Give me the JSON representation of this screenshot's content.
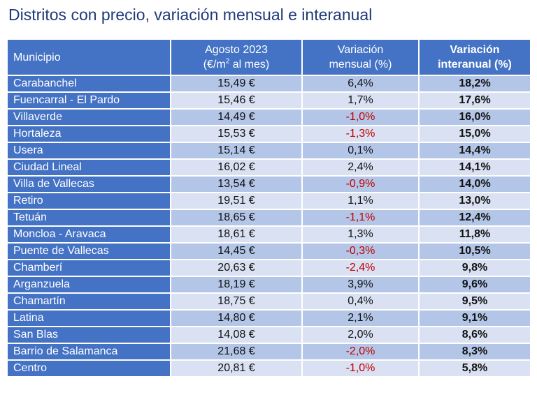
{
  "title": "Distritos con precio, variación mensual e interanual",
  "header": {
    "municipio": "Municipio",
    "agosto_line1": "Agosto 2023",
    "agosto_line2_pre": "(€/m",
    "agosto_line2_sup": "2",
    "agosto_line2_post": " al mes)",
    "mensual_line1": "Variación",
    "mensual_line2": "mensual (%)",
    "interanual_line1": "Variación",
    "interanual_line2": "interanual (%)"
  },
  "colors": {
    "title": "#1f3a7a",
    "header_bg": "#4472c4",
    "row_light": "#d9e1f2",
    "row_dark": "#b4c6e7",
    "negative": "#c00000"
  },
  "rows": [
    {
      "municipio": "Carabanchel",
      "precio": "15,49 €",
      "mensual": "6,4%",
      "interanual": "18,2%"
    },
    {
      "municipio": "Fuencarral - El Pardo",
      "precio": "15,46 €",
      "mensual": "1,7%",
      "interanual": "17,6%"
    },
    {
      "municipio": "Villaverde",
      "precio": "14,49 €",
      "mensual": "-1,0%",
      "interanual": "16,0%"
    },
    {
      "municipio": "Hortaleza",
      "precio": "15,53 €",
      "mensual": "-1,3%",
      "interanual": "15,0%"
    },
    {
      "municipio": "Usera",
      "precio": "15,14 €",
      "mensual": "0,1%",
      "interanual": "14,4%"
    },
    {
      "municipio": "Ciudad Lineal",
      "precio": "16,02 €",
      "mensual": "2,4%",
      "interanual": "14,1%"
    },
    {
      "municipio": "Villa de Vallecas",
      "precio": "13,54 €",
      "mensual": "-0,9%",
      "interanual": "14,0%"
    },
    {
      "municipio": "Retiro",
      "precio": "19,51 €",
      "mensual": "1,1%",
      "interanual": "13,0%"
    },
    {
      "municipio": "Tetuán",
      "precio": "18,65 €",
      "mensual": "-1,1%",
      "interanual": "12,4%"
    },
    {
      "municipio": "Moncloa - Aravaca",
      "precio": "18,61 €",
      "mensual": "1,3%",
      "interanual": "11,8%"
    },
    {
      "municipio": "Puente de Vallecas",
      "precio": "14,45 €",
      "mensual": "-0,3%",
      "interanual": "10,5%"
    },
    {
      "municipio": "Chamberí",
      "precio": "20,63 €",
      "mensual": "-2,4%",
      "interanual": "9,8%"
    },
    {
      "municipio": "Arganzuela",
      "precio": "18,19 €",
      "mensual": "3,9%",
      "interanual": "9,6%"
    },
    {
      "municipio": "Chamartín",
      "precio": "18,75 €",
      "mensual": "0,4%",
      "interanual": "9,5%"
    },
    {
      "municipio": "Latina",
      "precio": "14,80 €",
      "mensual": "2,1%",
      "interanual": "9,1%"
    },
    {
      "municipio": "San Blas",
      "precio": "14,08 €",
      "mensual": "2,0%",
      "interanual": "8,6%"
    },
    {
      "municipio": "Barrio de Salamanca",
      "precio": "21,68 €",
      "mensual": "-2,0%",
      "interanual": "8,3%"
    },
    {
      "municipio": "Centro",
      "precio": "20,81 €",
      "mensual": "-1,0%",
      "interanual": "5,8%"
    }
  ]
}
